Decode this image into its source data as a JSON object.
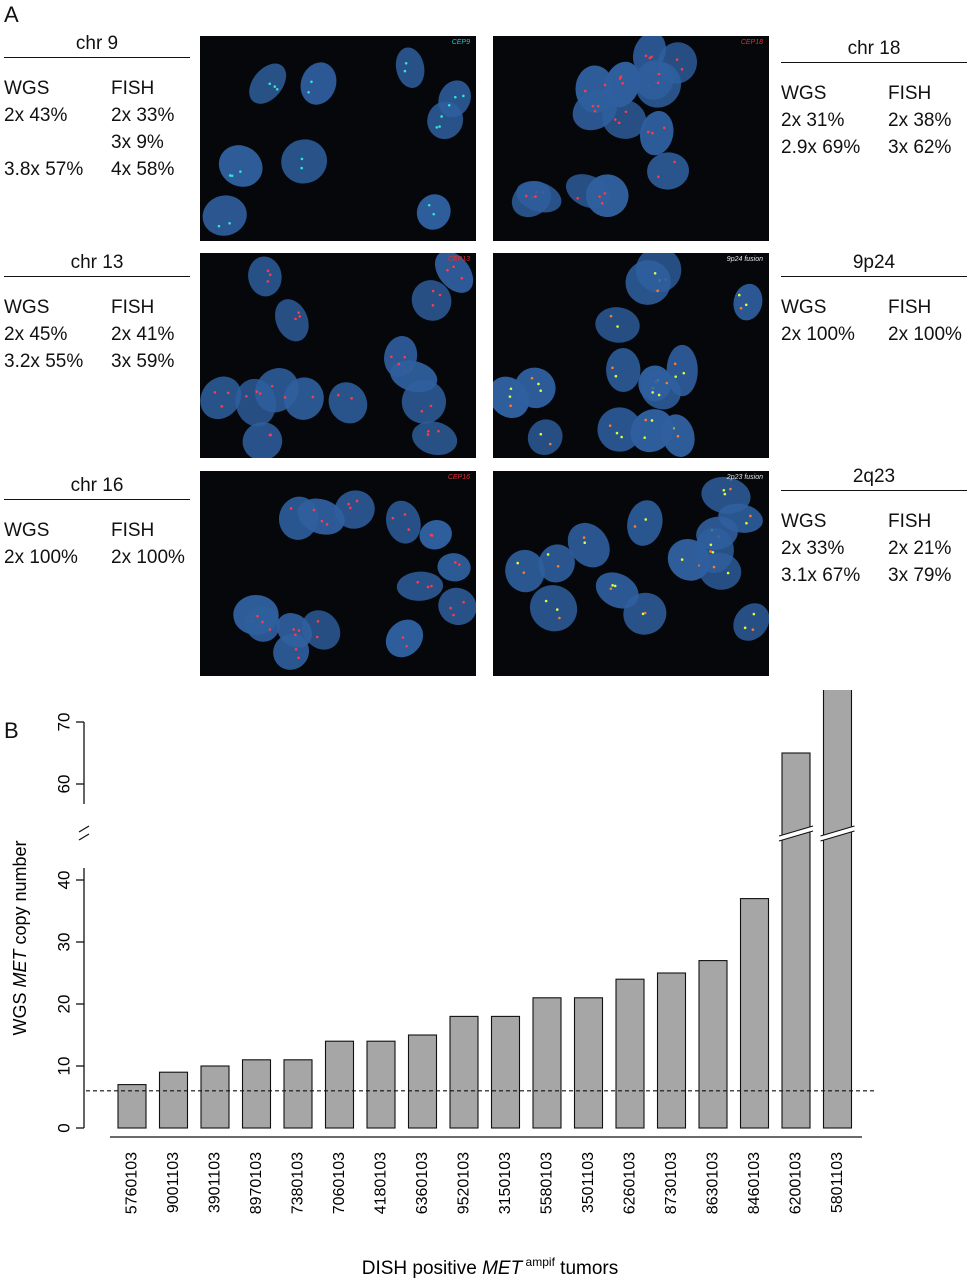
{
  "panelA": {
    "letter": "A",
    "left_blocks": [
      {
        "title": "chr 9",
        "wgs_header": "WGS",
        "fish_header": "FISH",
        "wgs": [
          "2x 43%",
          "",
          "3.8x 57%"
        ],
        "fish": [
          "2x 33%",
          "3x 9%",
          "4x 58%"
        ]
      },
      {
        "title": "chr 13",
        "wgs_header": "WGS",
        "fish_header": "FISH",
        "wgs": [
          "2x 45%",
          "3.2x 55%"
        ],
        "fish": [
          "2x 41%",
          "3x 59%"
        ]
      },
      {
        "title": "chr 16",
        "wgs_header": "WGS",
        "fish_header": "FISH",
        "wgs": [
          "2x 100%"
        ],
        "fish": [
          "2x 100%"
        ]
      }
    ],
    "right_blocks": [
      {
        "title": "chr 18",
        "wgs_header": "WGS",
        "fish_header": "FISH",
        "wgs": [
          "2x 31%",
          "2.9x 69%"
        ],
        "fish": [
          "2x 38%",
          "3x 62%"
        ]
      },
      {
        "title": "9p24",
        "wgs_header": "WGS",
        "fish_header": "FISH",
        "wgs": [
          "2x 100%"
        ],
        "fish": [
          "2x 100%"
        ]
      },
      {
        "title": "2q23",
        "wgs_header": "WGS",
        "fish_header": "FISH",
        "wgs": [
          "2x 33%",
          "3.1x 67%"
        ],
        "fish": [
          "2x 21%",
          "3x 79%"
        ]
      }
    ],
    "images": [
      {
        "label": "CEP9",
        "label_color": "#22c7c7",
        "dot_colors": [
          "#2ee6d6"
        ]
      },
      {
        "label": "CEP18",
        "label_color": "#e03030",
        "dot_colors": [
          "#ff3b4b"
        ]
      },
      {
        "label": "CEP13",
        "label_color": "#e03030",
        "dot_colors": [
          "#ff3b4b"
        ]
      },
      {
        "label": "9p24 fusion",
        "label_color": "#e8e8e8",
        "dot_colors": [
          "#d9ff3a",
          "#ff7a2a"
        ]
      },
      {
        "label": "CEP16",
        "label_color": "#e03030",
        "dot_colors": [
          "#ff3b4b"
        ]
      },
      {
        "label": "2p23 fusion",
        "label_color": "#e8e8e8",
        "dot_colors": [
          "#d9ff3a",
          "#ff7a2a"
        ]
      }
    ],
    "nucleus_color": "#2f5f9e"
  },
  "panelB": {
    "letter": "B"
  },
  "chart_data": {
    "type": "bar",
    "ylabel_parts": [
      "WGS ",
      "MET",
      " copy number"
    ],
    "xlabel_parts": [
      "DISH positive ",
      "MET",
      " ampif",
      " tumors"
    ],
    "categories": [
      "5760103",
      "9001103",
      "3901103",
      "8970103",
      "7380103",
      "7060103",
      "4180103",
      "6360103",
      "9520103",
      "3150103",
      "5580103",
      "3501103",
      "6260103",
      "8730103",
      "8630103",
      "8460103",
      "6200103",
      "5801103"
    ],
    "values": [
      7,
      9,
      10,
      11,
      11,
      14,
      14,
      15,
      18,
      18,
      21,
      21,
      24,
      25,
      27,
      37,
      65,
      76
    ],
    "axis_break": [
      45,
      55
    ],
    "yticks_lower": [
      0,
      10,
      20,
      30,
      40
    ],
    "yticks_upper": [
      60,
      70
    ],
    "threshold_line": 6,
    "bar_color": "#a6a6a6"
  }
}
